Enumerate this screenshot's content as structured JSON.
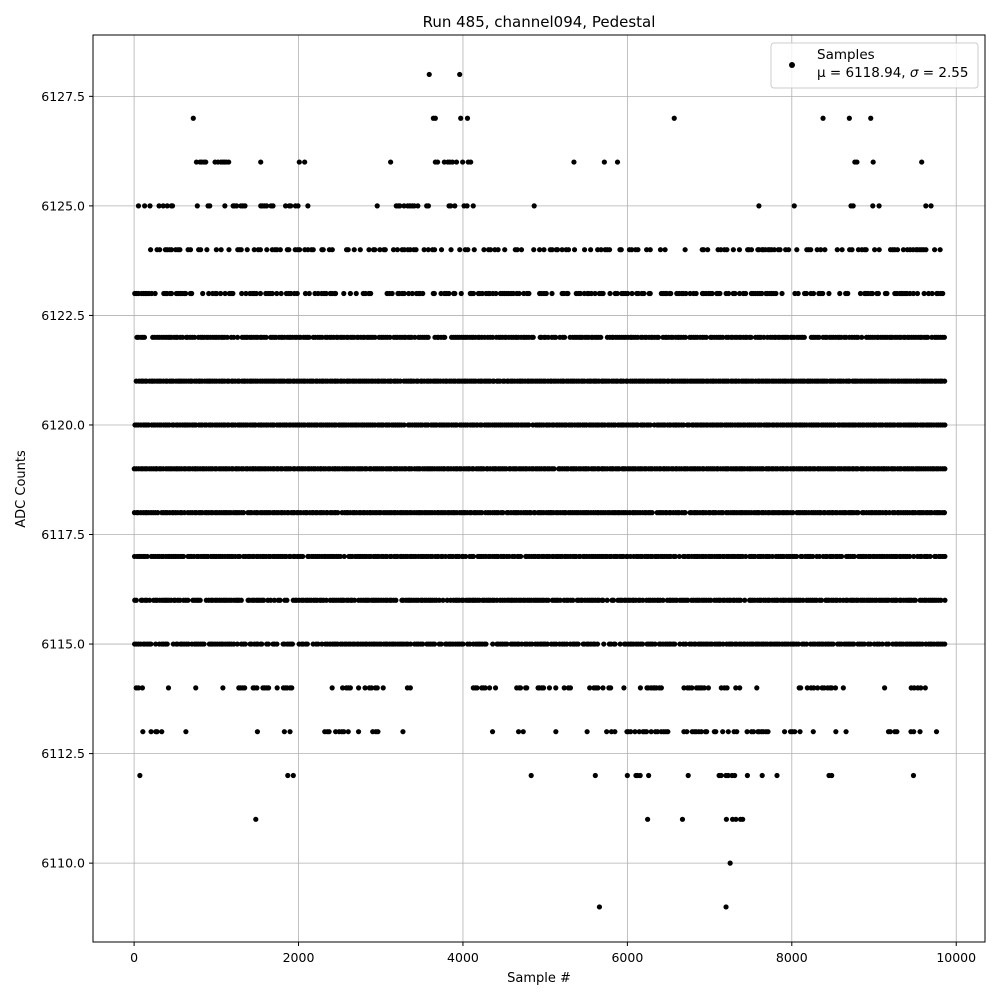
{
  "chart_data": {
    "type": "scatter",
    "title": "Run 485, channel094, Pedestal",
    "xlabel": "Sample #",
    "ylabel": "ADC Counts",
    "xlim": [
      -500,
      10350
    ],
    "ylim": [
      6108.2,
      6128.9
    ],
    "xticks": [
      0,
      2000,
      4000,
      6000,
      8000,
      10000
    ],
    "xtick_labels": [
      "0",
      "2000",
      "4000",
      "6000",
      "8000",
      "10000"
    ],
    "yticks": [
      6110.0,
      6112.5,
      6115.0,
      6117.5,
      6120.0,
      6122.5,
      6125.0,
      6127.5
    ],
    "ytick_labels": [
      "6110.0",
      "6112.5",
      "6115.0",
      "6117.5",
      "6120.0",
      "6122.5",
      "6125.0",
      "6127.5"
    ],
    "grid": true,
    "legend_position": "top-right",
    "legend": {
      "label": "Samples",
      "stats_prefix": "μ = 6118.94, ",
      "stats_sigma": "σ",
      "stats_suffix": " = 2.55"
    },
    "series": [
      {
        "name": "Samples",
        "color": "#000000",
        "marker": "circle",
        "n_samples": 9850,
        "mean": 6118.94,
        "sigma": 2.55,
        "dense_levels": [
          6115,
          6116,
          6117,
          6118,
          6119,
          6120,
          6121,
          6122
        ],
        "level_x_ranges": {
          "6109": [
            [
              5660,
              5660
            ],
            [
              7200,
              7200
            ]
          ],
          "6110": [
            [
              7250,
              7250
            ]
          ],
          "6111": [
            [
              1480,
              1480
            ],
            [
              6210,
              6280
            ],
            [
              6670,
              6670
            ],
            [
              7090,
              7420
            ]
          ],
          "6112": [
            [
              70,
              70
            ],
            [
              1830,
              1930
            ],
            [
              4340,
              4400
            ],
            [
              4830,
              4830
            ],
            [
              5430,
              5460
            ],
            [
              5610,
              5610
            ],
            [
              5920,
              6300
            ],
            [
              6740,
              6740
            ],
            [
              7090,
              7300
            ],
            [
              7460,
              7460
            ],
            [
              7640,
              7640
            ],
            [
              7820,
              7820
            ],
            [
              8450,
              8480
            ],
            [
              9480,
              9480
            ]
          ],
          "6113": [
            [
              0,
              330
            ],
            [
              630,
              630
            ],
            [
              1500,
              1500
            ],
            [
              1820,
              1930
            ],
            [
              2290,
              2610
            ],
            [
              2730,
              2730
            ],
            [
              2890,
              3000
            ],
            [
              3270,
              3270
            ],
            [
              4360,
              4360
            ],
            [
              4650,
              4740
            ],
            [
              5130,
              5130
            ],
            [
              5410,
              5530
            ],
            [
              5720,
              5870
            ],
            [
              5930,
              6480
            ],
            [
              6660,
              6990
            ],
            [
              7020,
              7330
            ],
            [
              7400,
              7730
            ],
            [
              7900,
              8040
            ],
            [
              8100,
              8100
            ],
            [
              8250,
              8300
            ],
            [
              8510,
              8620
            ],
            [
              8660,
              8660
            ],
            [
              9140,
              9300
            ],
            [
              9420,
              9550
            ],
            [
              9760,
              9760
            ]
          ],
          "6114": [
            [
              0,
              100
            ],
            [
              280,
              430
            ],
            [
              750,
              750
            ],
            [
              1080,
              1080
            ],
            [
              1260,
              1940
            ],
            [
              2330,
              2960
            ],
            [
              3030,
              3030
            ],
            [
              3310,
              3450
            ],
            [
              4120,
              4430
            ],
            [
              4600,
              5010
            ],
            [
              5050,
              5320
            ],
            [
              5390,
              5820
            ],
            [
              5950,
              6420
            ],
            [
              6680,
              7380
            ],
            [
              7560,
              7620
            ],
            [
              8080,
              8550
            ],
            [
              8620,
              8650
            ],
            [
              9120,
              9240
            ],
            [
              9450,
              9530
            ],
            [
              9560,
              9620
            ]
          ],
          "6123": [
            [
              0,
              9850
            ]
          ],
          "6124": [
            [
              100,
              9850
            ]
          ],
          "6125": [
            [
              40,
              1370
            ],
            [
              1530,
              2150
            ],
            [
              2950,
              4160
            ],
            [
              4860,
              4990
            ],
            [
              6550,
              6590
            ],
            [
              7600,
              7600
            ],
            [
              8030,
              8030
            ],
            [
              8720,
              8760
            ],
            [
              8980,
              9060
            ],
            [
              9630,
              9850
            ]
          ],
          "6126": [
            [
              720,
              1150
            ],
            [
              1540,
              1540
            ],
            [
              1970,
              2100
            ],
            [
              3120,
              3120
            ],
            [
              3660,
              4090
            ],
            [
              5350,
              5350
            ],
            [
              5720,
              5720
            ],
            [
              5880,
              5880
            ],
            [
              8760,
              8870
            ],
            [
              8990,
              8990
            ],
            [
              9580,
              9580
            ]
          ],
          "6127": [
            [
              720,
              720
            ],
            [
              900,
              970
            ],
            [
              3610,
              3680
            ],
            [
              3970,
              4080
            ],
            [
              6570,
              6570
            ],
            [
              8380,
              8380
            ],
            [
              8700,
              8700
            ],
            [
              8960,
              8960
            ]
          ],
          "6128": [
            [
              3590,
              3590
            ],
            [
              3960,
              3960
            ]
          ]
        },
        "level_density": {
          "6109": 0.3,
          "6110": 0.3,
          "6111": 0.5,
          "6112": 0.5,
          "6113": 0.55,
          "6114": 0.55,
          "6115": 0.85,
          "6116": 0.9,
          "6117": 0.95,
          "6118": 0.97,
          "6119": 0.99,
          "6120": 0.99,
          "6121": 0.99,
          "6122": 0.9,
          "6123": 0.55,
          "6124": 0.45,
          "6125": 0.4,
          "6126": 0.5,
          "6127": 0.6,
          "6128": 1.0
        }
      }
    ]
  }
}
